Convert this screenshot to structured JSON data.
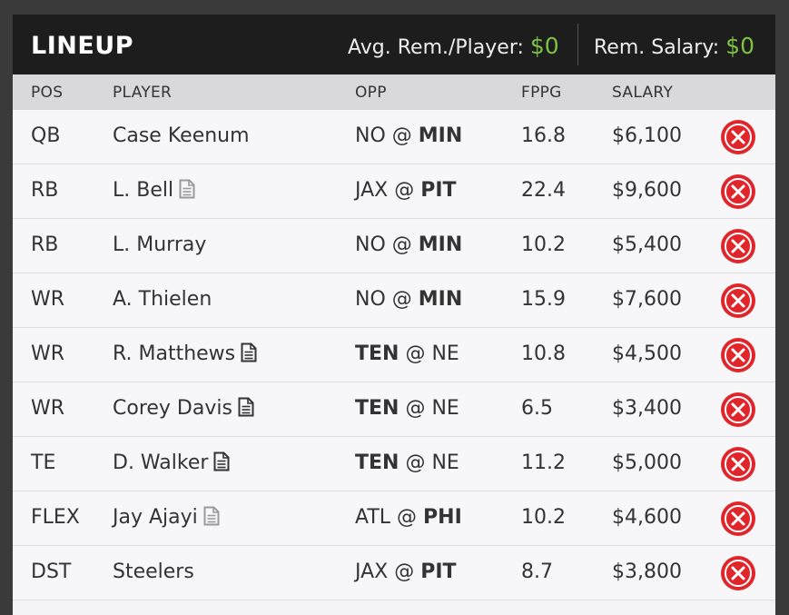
{
  "header": {
    "title": "LINEUP",
    "avg_label": "Avg. Rem./Player:",
    "avg_value": "$0",
    "rem_label": "Rem. Salary:",
    "rem_value": "$0"
  },
  "columns": {
    "pos": "POS",
    "player": "PLAYER",
    "opp": "OPP",
    "fppg": "FPPG",
    "salary": "SALARY"
  },
  "rows": [
    {
      "pos": "QB",
      "player": "Case Keenum",
      "note": "none",
      "away": "NO",
      "at": "@",
      "home": "MIN",
      "bold": "home",
      "fppg": "16.8",
      "salary": "$6,100"
    },
    {
      "pos": "RB",
      "player": "L. Bell",
      "note": "light",
      "away": "JAX",
      "at": "@",
      "home": "PIT",
      "bold": "home",
      "fppg": "22.4",
      "salary": "$9,600"
    },
    {
      "pos": "RB",
      "player": "L. Murray",
      "note": "none",
      "away": "NO",
      "at": "@",
      "home": "MIN",
      "bold": "home",
      "fppg": "10.2",
      "salary": "$5,400"
    },
    {
      "pos": "WR",
      "player": "A. Thielen",
      "note": "none",
      "away": "NO",
      "at": "@",
      "home": "MIN",
      "bold": "home",
      "fppg": "15.9",
      "salary": "$7,600"
    },
    {
      "pos": "WR",
      "player": "R. Matthews",
      "note": "dark",
      "away": "TEN",
      "at": "@",
      "home": "NE",
      "bold": "away",
      "fppg": "10.8",
      "salary": "$4,500"
    },
    {
      "pos": "WR",
      "player": "Corey Davis",
      "note": "dark",
      "away": "TEN",
      "at": "@",
      "home": "NE",
      "bold": "away",
      "fppg": "6.5",
      "salary": "$3,400"
    },
    {
      "pos": "TE",
      "player": "D. Walker",
      "note": "dark",
      "away": "TEN",
      "at": "@",
      "home": "NE",
      "bold": "away",
      "fppg": "11.2",
      "salary": "$5,000"
    },
    {
      "pos": "FLEX",
      "player": "Jay Ajayi",
      "note": "light",
      "away": "ATL",
      "at": "@",
      "home": "PHI",
      "bold": "home",
      "fppg": "10.2",
      "salary": "$4,600"
    },
    {
      "pos": "DST",
      "player": "Steelers",
      "note": "none",
      "away": "JAX",
      "at": "@",
      "home": "PIT",
      "bold": "home",
      "fppg": "8.7",
      "salary": "$3,800"
    }
  ],
  "icons": {
    "note_icon": "document-icon",
    "remove_icon": "remove-x-icon"
  },
  "colors": {
    "money": "#7ec241",
    "remove": "#e0252b",
    "note_dark": "#333333",
    "note_light": "#9a9a9a"
  }
}
